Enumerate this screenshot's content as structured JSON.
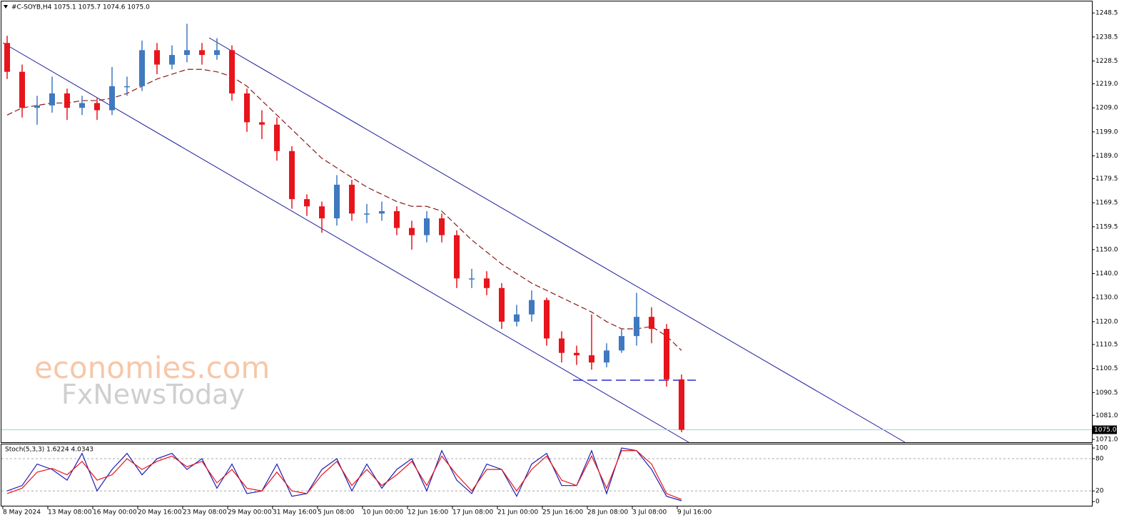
{
  "chart_data": [
    {
      "type": "candlestick",
      "title": "#C-SOYB,H4  1075.1 1075.7 1074.6 1075.0",
      "watermark": [
        "economies.com",
        "FxNewsToday"
      ],
      "categories": [
        "8 May 2024",
        null,
        null,
        "13 May 08:00",
        null,
        null,
        "16 May 00:00",
        null,
        null,
        "20 May 16:00",
        null,
        null,
        "23 May 08:00",
        null,
        null,
        "29 May 00:00",
        null,
        null,
        "31 May 16:00",
        null,
        null,
        "5 Jun 08:00",
        null,
        null,
        "10 Jun 00:00",
        null,
        null,
        "12 Jun 16:00",
        null,
        null,
        "17 Jun 08:00",
        null,
        null,
        "21 Jun 00:00",
        null,
        null,
        "25 Jun 16:00",
        null,
        null,
        "28 Jun 08:00",
        null,
        null,
        "3 Jul 08:00",
        null,
        null,
        "9 Jul 16:00"
      ],
      "open": [
        1236,
        1224,
        1209,
        1210,
        1215,
        1209,
        1211,
        1208,
        1218,
        1218,
        1233,
        1227,
        1231,
        1233,
        1231,
        1233,
        1215,
        1203,
        1202,
        1191,
        1171,
        1168,
        1163,
        1177,
        1165,
        1165,
        1166,
        1159,
        1156,
        1163,
        1156,
        1138,
        1138,
        1134,
        1120,
        1123,
        1129,
        1113,
        1107,
        1106,
        1103,
        1108,
        1114,
        1122,
        1117,
        1096
      ],
      "high": [
        1239,
        1227,
        1214,
        1222,
        1217,
        1214,
        1213,
        1226,
        1222,
        1237,
        1236,
        1235,
        1244,
        1236,
        1238,
        1235,
        1217,
        1208,
        1205,
        1193,
        1173,
        1170,
        1181,
        1179,
        1169,
        1170,
        1168,
        1162,
        1166,
        1165,
        1158,
        1142,
        1141,
        1136,
        1127,
        1133,
        1130,
        1116,
        1110,
        1123,
        1111,
        1117,
        1132,
        1126,
        1119,
        1098
      ],
      "low": [
        1221,
        1205,
        1202,
        1207,
        1204,
        1206,
        1204,
        1206,
        1214,
        1216,
        1223,
        1225,
        1228,
        1227,
        1229,
        1212,
        1199,
        1196,
        1187,
        1167,
        1164,
        1157,
        1160,
        1162,
        1161,
        1162,
        1156,
        1150,
        1153,
        1153,
        1134,
        1134,
        1131,
        1117,
        1118,
        1120,
        1110,
        1103,
        1102,
        1100,
        1101,
        1107,
        1110,
        1111,
        1093,
        1074
      ],
      "close": [
        1224,
        1209,
        1210,
        1215,
        1209,
        1211,
        1208,
        1218,
        1218,
        1233,
        1227,
        1231,
        1233,
        1231,
        1233,
        1215,
        1203,
        1202,
        1191,
        1171,
        1168,
        1163,
        1177,
        1165,
        1165,
        1166,
        1159,
        1156,
        1163,
        1156,
        1138,
        1138,
        1134,
        1120,
        1123,
        1129,
        1113,
        1107,
        1106,
        1103,
        1108,
        1114,
        1122,
        1117,
        1096,
        1075
      ],
      "bull_color": "#3f79c0",
      "bear_color": "#e8141b",
      "overlay": {
        "color": "#8b1a1a",
        "values": [
          1206,
          1209,
          1210,
          1211,
          1211,
          1212,
          1212,
          1213,
          1215,
          1218,
          1221,
          1223,
          1225,
          1225,
          1224,
          1222,
          1218,
          1212,
          1206,
          1200,
          1194,
          1188,
          1184,
          1180,
          1176,
          1173,
          1170,
          1168,
          1168,
          1166,
          1160,
          1154,
          1149,
          1144,
          1140,
          1136,
          1133,
          1130,
          1127,
          1124,
          1120,
          1117,
          1117,
          1118,
          1114,
          1108
        ]
      },
      "last_price": {
        "value": 1075,
        "label": "1075.0"
      },
      "ylim": [
        1069.8,
        1252.4
      ],
      "yticks": [
        1248.5,
        1238.5,
        1228.5,
        {
          "value": 1219,
          "label": "1219.0"
        },
        {
          "value": 1209,
          "label": "1209.0"
        },
        {
          "value": 1199,
          "label": "1199.0"
        },
        {
          "value": 1189,
          "label": "1189.0"
        },
        1179.5,
        1169.5,
        1159.5,
        {
          "value": 1150,
          "label": "1150.0"
        },
        {
          "value": 1140,
          "label": "1140.0"
        },
        {
          "value": 1130,
          "label": "1130.0"
        },
        {
          "value": 1120,
          "label": "1120.0"
        },
        1110.5,
        1100.5,
        1090.5,
        {
          "value": 1081,
          "label": "1081.0"
        },
        {
          "value": 1071,
          "label": "1071.0"
        }
      ]
    },
    {
      "type": "line",
      "title": "Stoch(5,3,3) 1.6224 4.0343",
      "series": [
        {
          "color": "#1e1eb4",
          "values": [
            20,
            30,
            70,
            60,
            40,
            90,
            20,
            60,
            90,
            50,
            80,
            90,
            60,
            80,
            25,
            70,
            15,
            20,
            70,
            10,
            15,
            60,
            80,
            20,
            70,
            25,
            60,
            80,
            20,
            95,
            40,
            15,
            70,
            60,
            10,
            70,
            90,
            30,
            30,
            95,
            15,
            100,
            95,
            60,
            10,
            1.6224
          ]
        },
        {
          "color": "#e8141b",
          "values": [
            15,
            25,
            55,
            62,
            50,
            75,
            40,
            50,
            80,
            60,
            75,
            85,
            65,
            75,
            35,
            60,
            25,
            20,
            55,
            20,
            15,
            50,
            75,
            30,
            60,
            30,
            50,
            75,
            30,
            85,
            50,
            20,
            60,
            60,
            20,
            60,
            85,
            40,
            30,
            85,
            25,
            95,
            95,
            70,
            15,
            4.0343
          ]
        }
      ],
      "levels": [
        80,
        20
      ],
      "ylim": [
        -9,
        108
      ],
      "yticks": [
        100,
        80,
        20,
        0
      ]
    }
  ]
}
